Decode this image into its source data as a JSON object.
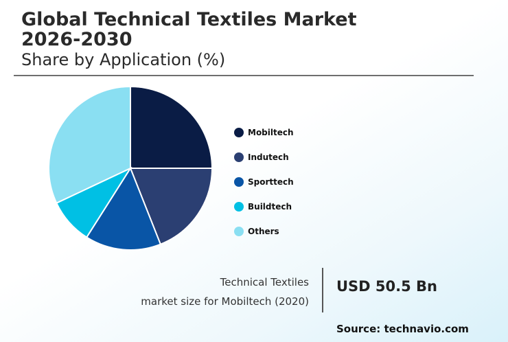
{
  "header": {
    "title": "Global Technical Textiles Market 2026-2030",
    "subtitle": "Share by Application (%)"
  },
  "chart_data": {
    "type": "pie",
    "title": "Share by Application (%)",
    "categories": [
      "Mobiltech",
      "Indutech",
      "Sporttech",
      "Buildtech",
      "Others"
    ],
    "values": [
      25,
      19,
      15,
      9,
      32
    ],
    "colors": [
      "#0a1c45",
      "#2b3f72",
      "#0955a6",
      "#00c0e4",
      "#8adff2"
    ],
    "legend_position": "right"
  },
  "metric": {
    "line1": "Technical Textiles",
    "line2": "market size for Mobiltech (2020)",
    "value": "USD 50.5 Bn"
  },
  "source": "Source: technavio.com"
}
